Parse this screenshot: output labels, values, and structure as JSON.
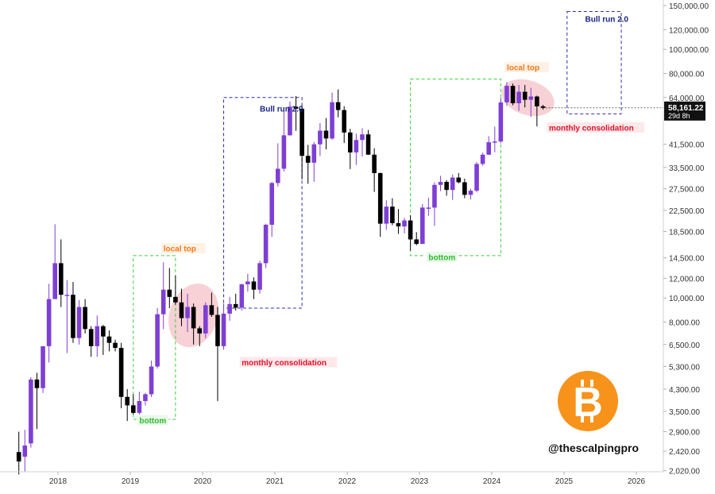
{
  "chart_data": {
    "type": "candlestick",
    "title": "",
    "y_scale": "log",
    "ylim": [
      2000,
      150000
    ],
    "x_ticks": [
      "2018",
      "2019",
      "2020",
      "2021",
      "2022",
      "2023",
      "2024",
      "2025",
      "2026"
    ],
    "y_ticks": [
      2020,
      2420,
      2900,
      3500,
      4300,
      5300,
      6500,
      8000,
      10000,
      12000,
      14500,
      18500,
      22500,
      27500,
      33500,
      41500,
      64000,
      80000,
      100000,
      120000,
      150000
    ],
    "y_tick_labels": [
      "2,020.00",
      "2,420.00",
      "2,900.00",
      "3,500.00",
      "4,300.00",
      "5,300.00",
      "6,500.00",
      "8,000.00",
      "10,000.00",
      "12,000.00",
      "14,500.00",
      "18,500.00",
      "22,500.00",
      "27,500.00",
      "33,500.00",
      "41,500.00",
      "64,000.00",
      "80,000.00",
      "100,000.00",
      "120,000.00",
      "150,000.00"
    ],
    "up_color": "#7e3fd4",
    "down_color": "#000000",
    "candles": [
      {
        "date": "2017-06",
        "open": 2400,
        "high": 2900,
        "low": 1950,
        "close": 2200
      },
      {
        "date": "2017-07",
        "open": 2300,
        "high": 2950,
        "low": 2000,
        "close": 2550
      },
      {
        "date": "2017-08",
        "open": 2600,
        "high": 4800,
        "low": 2500,
        "close": 4700
      },
      {
        "date": "2017-09",
        "open": 4700,
        "high": 5000,
        "low": 2970,
        "close": 4340
      },
      {
        "date": "2017-10",
        "open": 4340,
        "high": 6400,
        "low": 4150,
        "close": 6400
      },
      {
        "date": "2017-11",
        "open": 6400,
        "high": 11400,
        "low": 5500,
        "close": 9900
      },
      {
        "date": "2017-12",
        "open": 9900,
        "high": 19800,
        "low": 10300,
        "close": 13800
      },
      {
        "date": "2018-01",
        "open": 13800,
        "high": 17200,
        "low": 9200,
        "close": 10300
      },
      {
        "date": "2018-02",
        "open": 10300,
        "high": 11800,
        "low": 6000,
        "close": 10300
      },
      {
        "date": "2018-03",
        "open": 10300,
        "high": 11600,
        "low": 6600,
        "close": 6900
      },
      {
        "date": "2018-04",
        "open": 6900,
        "high": 9800,
        "low": 6500,
        "close": 9200
      },
      {
        "date": "2018-05",
        "open": 9200,
        "high": 9900,
        "low": 7200,
        "close": 7500
      },
      {
        "date": "2018-06",
        "open": 7500,
        "high": 7700,
        "low": 5800,
        "close": 6400
      },
      {
        "date": "2018-07",
        "open": 6400,
        "high": 8500,
        "low": 5800,
        "close": 7700
      },
      {
        "date": "2018-08",
        "open": 7700,
        "high": 7800,
        "low": 5900,
        "close": 7000
      },
      {
        "date": "2018-09",
        "open": 7000,
        "high": 7400,
        "low": 6100,
        "close": 6600
      },
      {
        "date": "2018-10",
        "open": 6600,
        "high": 6800,
        "low": 6100,
        "close": 6300
      },
      {
        "date": "2018-11",
        "open": 6300,
        "high": 6600,
        "low": 3600,
        "close": 4000
      },
      {
        "date": "2018-12",
        "open": 4000,
        "high": 4300,
        "low": 3200,
        "close": 3700
      },
      {
        "date": "2019-01",
        "open": 3700,
        "high": 4100,
        "low": 3400,
        "close": 3450
      },
      {
        "date": "2019-02",
        "open": 3450,
        "high": 4200,
        "low": 3350,
        "close": 3850
      },
      {
        "date": "2019-03",
        "open": 3850,
        "high": 4150,
        "low": 3700,
        "close": 4100
      },
      {
        "date": "2019-04",
        "open": 4100,
        "high": 5600,
        "low": 4000,
        "close": 5300
      },
      {
        "date": "2019-05",
        "open": 5300,
        "high": 9100,
        "low": 5200,
        "close": 8600
      },
      {
        "date": "2019-06",
        "open": 8600,
        "high": 13900,
        "low": 7500,
        "close": 10800
      },
      {
        "date": "2019-07",
        "open": 10800,
        "high": 13200,
        "low": 9100,
        "close": 10100
      },
      {
        "date": "2019-08",
        "open": 10100,
        "high": 12300,
        "low": 9400,
        "close": 9600
      },
      {
        "date": "2019-09",
        "open": 9600,
        "high": 10900,
        "low": 7700,
        "close": 8300
      },
      {
        "date": "2019-10",
        "open": 8300,
        "high": 10400,
        "low": 7300,
        "close": 9200
      },
      {
        "date": "2019-11",
        "open": 9200,
        "high": 9500,
        "low": 6500,
        "close": 7550
      },
      {
        "date": "2019-12",
        "open": 7550,
        "high": 7700,
        "low": 6400,
        "close": 7200
      },
      {
        "date": "2020-01",
        "open": 7200,
        "high": 9600,
        "low": 6900,
        "close": 9350
      },
      {
        "date": "2020-02",
        "open": 9350,
        "high": 10500,
        "low": 8400,
        "close": 8550
      },
      {
        "date": "2020-03",
        "open": 8550,
        "high": 9200,
        "low": 3850,
        "close": 6400
      },
      {
        "date": "2020-04",
        "open": 6400,
        "high": 9500,
        "low": 6200,
        "close": 8650
      },
      {
        "date": "2020-05",
        "open": 8650,
        "high": 10100,
        "low": 8100,
        "close": 9450
      },
      {
        "date": "2020-06",
        "open": 9450,
        "high": 10400,
        "low": 8900,
        "close": 9150
      },
      {
        "date": "2020-07",
        "open": 9150,
        "high": 11400,
        "low": 8900,
        "close": 11350
      },
      {
        "date": "2020-08",
        "open": 11350,
        "high": 12500,
        "low": 10600,
        "close": 11650
      },
      {
        "date": "2020-09",
        "open": 11650,
        "high": 12100,
        "low": 9900,
        "close": 10800
      },
      {
        "date": "2020-10",
        "open": 10800,
        "high": 14100,
        "low": 10400,
        "close": 13800
      },
      {
        "date": "2020-11",
        "open": 13800,
        "high": 19900,
        "low": 13200,
        "close": 19700
      },
      {
        "date": "2020-12",
        "open": 19700,
        "high": 29300,
        "low": 17600,
        "close": 29000
      },
      {
        "date": "2021-01",
        "open": 29000,
        "high": 41900,
        "low": 28100,
        "close": 33100
      },
      {
        "date": "2021-02",
        "open": 33100,
        "high": 58300,
        "low": 32300,
        "close": 45100
      },
      {
        "date": "2021-03",
        "open": 45100,
        "high": 61700,
        "low": 45000,
        "close": 58800
      },
      {
        "date": "2021-04",
        "open": 58800,
        "high": 64800,
        "low": 47000,
        "close": 57700
      },
      {
        "date": "2021-05",
        "open": 57700,
        "high": 59500,
        "low": 30000,
        "close": 37300
      },
      {
        "date": "2021-06",
        "open": 37300,
        "high": 41300,
        "low": 28800,
        "close": 35000
      },
      {
        "date": "2021-07",
        "open": 35000,
        "high": 42400,
        "low": 29300,
        "close": 41500
      },
      {
        "date": "2021-08",
        "open": 41500,
        "high": 50500,
        "low": 37300,
        "close": 47100
      },
      {
        "date": "2021-09",
        "open": 47100,
        "high": 52900,
        "low": 39600,
        "close": 43800
      },
      {
        "date": "2021-10",
        "open": 43800,
        "high": 67000,
        "low": 43300,
        "close": 61300
      },
      {
        "date": "2021-11",
        "open": 61300,
        "high": 69000,
        "low": 53300,
        "close": 57000
      },
      {
        "date": "2021-12",
        "open": 57000,
        "high": 59100,
        "low": 42000,
        "close": 46300
      },
      {
        "date": "2022-01",
        "open": 46300,
        "high": 47900,
        "low": 33000,
        "close": 38500
      },
      {
        "date": "2022-02",
        "open": 38500,
        "high": 45800,
        "low": 34300,
        "close": 43200
      },
      {
        "date": "2022-03",
        "open": 43200,
        "high": 48200,
        "low": 37100,
        "close": 45500
      },
      {
        "date": "2022-04",
        "open": 45500,
        "high": 47400,
        "low": 37600,
        "close": 37700
      },
      {
        "date": "2022-05",
        "open": 37700,
        "high": 40000,
        "low": 26700,
        "close": 31800
      },
      {
        "date": "2022-06",
        "open": 31800,
        "high": 31900,
        "low": 17600,
        "close": 19900
      },
      {
        "date": "2022-07",
        "open": 19900,
        "high": 24700,
        "low": 18800,
        "close": 23300
      },
      {
        "date": "2022-08",
        "open": 23300,
        "high": 25200,
        "low": 19600,
        "close": 20000
      },
      {
        "date": "2022-09",
        "open": 20000,
        "high": 22800,
        "low": 18100,
        "close": 19400
      },
      {
        "date": "2022-10",
        "open": 19400,
        "high": 21000,
        "low": 18200,
        "close": 20500
      },
      {
        "date": "2022-11",
        "open": 20500,
        "high": 21500,
        "low": 15500,
        "close": 17200
      },
      {
        "date": "2022-12",
        "open": 17200,
        "high": 18400,
        "low": 16300,
        "close": 16500
      },
      {
        "date": "2023-01",
        "open": 16500,
        "high": 23900,
        "low": 16500,
        "close": 23100
      },
      {
        "date": "2023-02",
        "open": 23100,
        "high": 25300,
        "low": 21400,
        "close": 23100
      },
      {
        "date": "2023-03",
        "open": 23100,
        "high": 29200,
        "low": 19500,
        "close": 28500
      },
      {
        "date": "2023-04",
        "open": 28500,
        "high": 31000,
        "low": 26900,
        "close": 29300
      },
      {
        "date": "2023-05",
        "open": 29300,
        "high": 29800,
        "low": 25800,
        "close": 27200
      },
      {
        "date": "2023-06",
        "open": 27200,
        "high": 31400,
        "low": 24800,
        "close": 30500
      },
      {
        "date": "2023-07",
        "open": 30500,
        "high": 31800,
        "low": 28900,
        "close": 29200
      },
      {
        "date": "2023-08",
        "open": 29200,
        "high": 30200,
        "low": 25200,
        "close": 26000
      },
      {
        "date": "2023-09",
        "open": 26000,
        "high": 27500,
        "low": 24900,
        "close": 27000
      },
      {
        "date": "2023-10",
        "open": 27000,
        "high": 35200,
        "low": 26600,
        "close": 34600
      },
      {
        "date": "2023-11",
        "open": 34600,
        "high": 38400,
        "low": 34100,
        "close": 37700
      },
      {
        "date": "2023-12",
        "open": 37700,
        "high": 44700,
        "low": 37600,
        "close": 42300
      },
      {
        "date": "2024-01",
        "open": 42300,
        "high": 48900,
        "low": 38600,
        "close": 42600
      },
      {
        "date": "2024-02",
        "open": 42600,
        "high": 63900,
        "low": 41900,
        "close": 61200
      },
      {
        "date": "2024-03",
        "open": 61200,
        "high": 73800,
        "low": 59300,
        "close": 71300
      },
      {
        "date": "2024-04",
        "open": 71300,
        "high": 72800,
        "low": 59600,
        "close": 60700
      },
      {
        "date": "2024-05",
        "open": 60700,
        "high": 71900,
        "low": 56600,
        "close": 67500
      },
      {
        "date": "2024-06",
        "open": 67500,
        "high": 71900,
        "low": 58400,
        "close": 62700
      },
      {
        "date": "2024-07",
        "open": 62700,
        "high": 70000,
        "low": 53500,
        "close": 64600
      },
      {
        "date": "2024-08",
        "open": 64600,
        "high": 65100,
        "low": 49000,
        "close": 59000
      },
      {
        "date": "2024-09",
        "open": 59000,
        "high": 59800,
        "low": 57200,
        "close": 58161
      }
    ],
    "annotations": [
      {
        "kind": "text",
        "text": "local top",
        "color": "#f07a1a",
        "x": "2019-06",
        "y": 15500
      },
      {
        "kind": "text",
        "text": "local top",
        "color": "#f07a1a",
        "x": "2024-03",
        "y": 83000
      },
      {
        "kind": "text",
        "text": "bottom",
        "color": "#2fb82f",
        "x": "2019-02",
        "y": 3150
      },
      {
        "kind": "text",
        "text": "bottom",
        "color": "#2fb82f",
        "x": "2023-02",
        "y": 14300
      },
      {
        "kind": "text",
        "text": "monthly consolidation",
        "color": "#e0112b",
        "x": "2020-07",
        "y": 5400
      },
      {
        "kind": "text",
        "text": "monthly consolidation",
        "color": "#e0112b",
        "x": "2024-10",
        "y": 47500
      },
      {
        "kind": "text",
        "text": "Bull run 2.0",
        "color": "#1a237e",
        "x": "2020-10",
        "y": 56500
      },
      {
        "kind": "text",
        "text": "Bull run 2.0",
        "color": "#1a237e",
        "x": "2025-04",
        "y": 130000
      },
      {
        "kind": "box",
        "style": "green-dashed",
        "x0": "2019-01",
        "x1": "2019-08",
        "y0": 3250,
        "y1": 14800
      },
      {
        "kind": "box",
        "style": "green-dashed",
        "x0": "2022-11",
        "x1": "2024-02",
        "y0": 14800,
        "y1": 76000
      },
      {
        "kind": "box",
        "style": "blue-dashed",
        "x0": "2020-04",
        "x1": "2021-05",
        "y0": 9100,
        "y1": 64000
      },
      {
        "kind": "box",
        "style": "blue-dashed",
        "x0": "2025-01",
        "x1": "2025-10",
        "y0": 55000,
        "y1": 142000
      },
      {
        "kind": "ellipse",
        "x0": "2019-07",
        "x1": "2020-03",
        "y0": 6300,
        "y1": 11500,
        "color": "#f6c9cf"
      },
      {
        "kind": "ellipse",
        "x0": "2024-02",
        "x1": "2024-11",
        "y0": 54500,
        "y1": 75000,
        "color": "#f6c9cf"
      }
    ],
    "price_label": {
      "value": "58,161.22",
      "countdown": "29d 8h",
      "price": 58161.22
    },
    "watermark": "@thescalpingpro",
    "logo": "bitcoin-logo"
  }
}
